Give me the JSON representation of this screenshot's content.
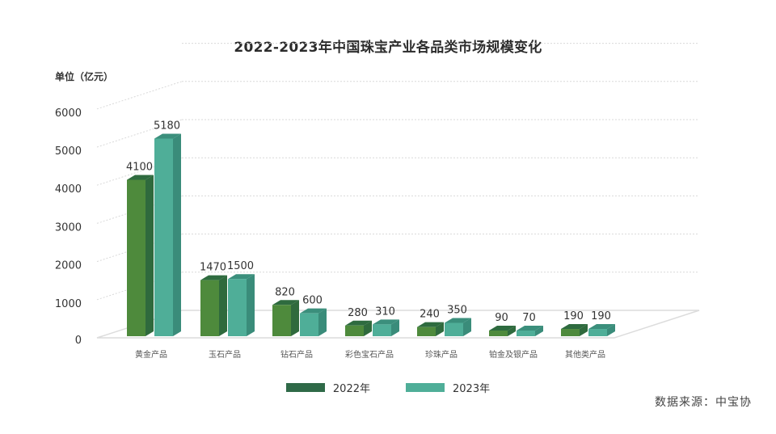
{
  "title": "2022-2023年中国珠宝产业各品类市场规模变化",
  "unit_label": "单位（亿元）",
  "source": "数据来源：中宝协",
  "colors": {
    "series_2022_front": "#4e8a3c",
    "series_2022_side": "#2f6a3d",
    "series_2022_top": "#2e6b3f",
    "series_2023_front": "#4fae98",
    "series_2023_side": "#3a8c7a",
    "series_2023_top": "#3b8f7c",
    "legend_2022": "#2f6a48",
    "legend_2023": "#4fae98",
    "grid": "#d9d9d9"
  },
  "legend": [
    {
      "label": "2022年",
      "color": "#2f6a48"
    },
    {
      "label": "2023年",
      "color": "#4fae98"
    }
  ],
  "chart_data": {
    "type": "bar",
    "title": "2022-2023年中国珠宝产业各品类市场规模变化",
    "xlabel": "",
    "ylabel": "单位（亿元）",
    "categories": [
      "黄金产品",
      "玉石产品",
      "钻石产品",
      "彩色宝石产品",
      "珍珠产品",
      "铂金及银产品",
      "其他类产品"
    ],
    "series": [
      {
        "name": "2022年",
        "values": [
          4100,
          1470,
          820,
          280,
          240,
          90,
          190
        ]
      },
      {
        "name": "2023年",
        "values": [
          5180,
          1500,
          600,
          310,
          350,
          70,
          190
        ]
      }
    ],
    "yticks": [
      0,
      1000,
      2000,
      3000,
      4000,
      5000,
      6000
    ],
    "ylim": [
      0,
      6500
    ],
    "grid": true,
    "legend_position": "bottom",
    "style": "3d-column",
    "source": "数据来源：中宝协"
  }
}
